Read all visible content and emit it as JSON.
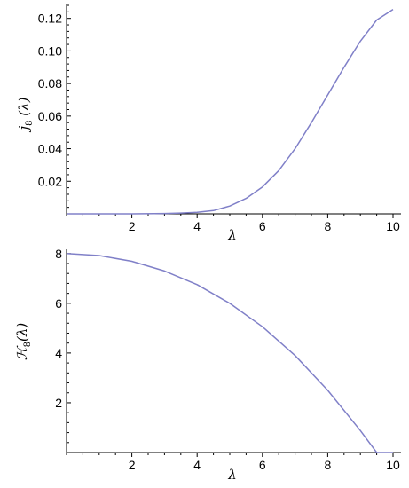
{
  "chart_data": [
    {
      "type": "line",
      "xlabel": "λ",
      "ylabel": {
        "main": "j",
        "sub": "8",
        "arg": " (λ)"
      },
      "xlim": [
        0,
        10
      ],
      "ylim": [
        0,
        0.128
      ],
      "xticks": [
        2,
        4,
        6,
        8,
        10
      ],
      "xtick_labels": [
        "2",
        "4",
        "6",
        "8",
        "10"
      ],
      "yticks": [
        0.02,
        0.04,
        0.06,
        0.08,
        0.1,
        0.12
      ],
      "ytick_labels": [
        "0.02",
        "0.04",
        "0.06",
        "0.08",
        "0.10",
        "0.12"
      ],
      "grid": false,
      "line_color": "#8080c8",
      "series": [
        {
          "x": [
            0,
            1,
            2,
            3,
            3.5,
            4,
            4.5,
            5,
            5.5,
            6,
            6.5,
            7,
            7.5,
            8,
            8.5,
            9,
            9.5,
            10
          ],
          "y": [
            0,
            0,
            0,
            0.0002,
            0.0005,
            0.001,
            0.002,
            0.0048,
            0.0095,
            0.0165,
            0.0265,
            0.04,
            0.056,
            0.073,
            0.09,
            0.106,
            0.119,
            0.1255
          ]
        }
      ]
    },
    {
      "type": "line",
      "xlabel": "λ",
      "ylabel": {
        "main": "ℋ",
        "sub": "8",
        "arg": "(λ)"
      },
      "xlim": [
        0,
        10
      ],
      "ylim": [
        0,
        8.1
      ],
      "xticks": [
        2,
        4,
        6,
        8,
        10
      ],
      "xtick_labels": [
        "2",
        "4",
        "6",
        "8",
        "10"
      ],
      "yticks": [
        2,
        4,
        6,
        8
      ],
      "ytick_labels": [
        "2",
        "4",
        "6",
        "8"
      ],
      "grid": false,
      "line_color": "#8080c8",
      "series": [
        {
          "x": [
            0,
            1,
            2,
            3,
            4,
            5,
            6,
            7,
            8,
            9,
            9.5,
            10
          ],
          "y": [
            8.0,
            7.92,
            7.69,
            7.3,
            6.75,
            6.0,
            5.06,
            3.9,
            2.5,
            0.88,
            0.0,
            0.0
          ]
        }
      ]
    }
  ]
}
